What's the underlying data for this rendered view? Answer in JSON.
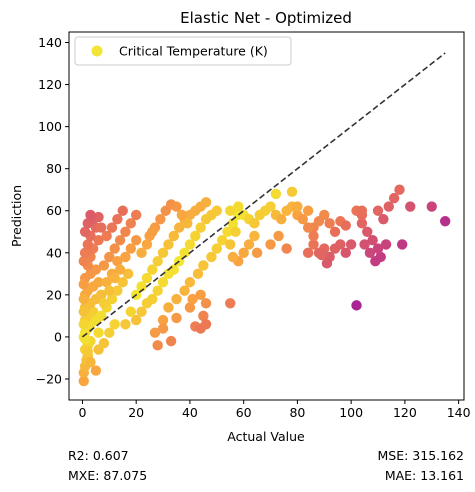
{
  "chart_data": {
    "type": "scatter",
    "title": "Elastic Net - Optimized",
    "xlabel": "Actual Value",
    "ylabel": "Prediction",
    "xlim": [
      -5,
      142
    ],
    "ylim": [
      -30,
      145
    ],
    "xticks": [
      0,
      20,
      40,
      60,
      80,
      100,
      120,
      140
    ],
    "yticks": [
      -20,
      0,
      20,
      40,
      60,
      80,
      100,
      120,
      140
    ],
    "xtick_labels": [
      "0",
      "20",
      "40",
      "60",
      "80",
      "100",
      "120",
      "140"
    ],
    "ytick_labels": [
      "−20",
      "0",
      "20",
      "40",
      "60",
      "80",
      "100",
      "120",
      "140"
    ],
    "grid": false,
    "legend": {
      "placement": "top-left",
      "entries": [
        "Critical Temperature (K)"
      ],
      "marker_color": "#f3e535"
    },
    "colormap": "plasma-upper",
    "reference_line": {
      "x": [
        0,
        135
      ],
      "y": [
        0,
        135
      ],
      "style": "dashed",
      "color": "#333333"
    },
    "series": [
      {
        "name": "Critical Temperature (K)",
        "points": [
          [
            0.5,
            -21
          ],
          [
            0.5,
            -17
          ],
          [
            1,
            -14
          ],
          [
            1.5,
            -11
          ],
          [
            2,
            -9
          ],
          [
            1,
            -6
          ],
          [
            2,
            -4
          ],
          [
            3,
            -2
          ],
          [
            0.5,
            0
          ],
          [
            1,
            2
          ],
          [
            2,
            4
          ],
          [
            3,
            6
          ],
          [
            1,
            8
          ],
          [
            2,
            10
          ],
          [
            4,
            12
          ],
          [
            1,
            14
          ],
          [
            3,
            16
          ],
          [
            5,
            18
          ],
          [
            1,
            20
          ],
          [
            2,
            22
          ],
          [
            4,
            24
          ],
          [
            6,
            26
          ],
          [
            1,
            28
          ],
          [
            3,
            30
          ],
          [
            5,
            32
          ],
          [
            2,
            34
          ],
          [
            0.5,
            36
          ],
          [
            3,
            38
          ],
          [
            1,
            40
          ],
          [
            4,
            42
          ],
          [
            2,
            44
          ],
          [
            6,
            46
          ],
          [
            3,
            48
          ],
          [
            1,
            50
          ],
          [
            5,
            52
          ],
          [
            2,
            54
          ],
          [
            4,
            56
          ],
          [
            6,
            57
          ],
          [
            3,
            58
          ],
          [
            7,
            52
          ],
          [
            0.5,
            25
          ],
          [
            1,
            -1
          ],
          [
            2,
            -7
          ],
          [
            3,
            -12
          ],
          [
            5,
            -16
          ],
          [
            0.5,
            6
          ],
          [
            0.5,
            12
          ],
          [
            0.5,
            18
          ],
          [
            6,
            -6
          ],
          [
            8,
            -3
          ],
          [
            10,
            2
          ],
          [
            12,
            6
          ],
          [
            7,
            10
          ],
          [
            9,
            14
          ],
          [
            11,
            18
          ],
          [
            13,
            22
          ],
          [
            15,
            26
          ],
          [
            17,
            30
          ],
          [
            8,
            34
          ],
          [
            10,
            38
          ],
          [
            12,
            42
          ],
          [
            14,
            46
          ],
          [
            16,
            50
          ],
          [
            18,
            54
          ],
          [
            20,
            58
          ],
          [
            9,
            48
          ],
          [
            11,
            52
          ],
          [
            13,
            56
          ],
          [
            15,
            60
          ],
          [
            7,
            20
          ],
          [
            9,
            26
          ],
          [
            11,
            30
          ],
          [
            13,
            36
          ],
          [
            6,
            2
          ],
          [
            5,
            8
          ],
          [
            8,
            16
          ],
          [
            10,
            22
          ],
          [
            12,
            28
          ],
          [
            14,
            32
          ],
          [
            16,
            38
          ],
          [
            18,
            42
          ],
          [
            20,
            46
          ],
          [
            20,
            20
          ],
          [
            22,
            24
          ],
          [
            24,
            28
          ],
          [
            26,
            32
          ],
          [
            28,
            36
          ],
          [
            30,
            40
          ],
          [
            32,
            44
          ],
          [
            34,
            48
          ],
          [
            36,
            52
          ],
          [
            38,
            56
          ],
          [
            40,
            58
          ],
          [
            42,
            60
          ],
          [
            44,
            62
          ],
          [
            46,
            64
          ],
          [
            20,
            8
          ],
          [
            22,
            12
          ],
          [
            24,
            16
          ],
          [
            26,
            18
          ],
          [
            28,
            22
          ],
          [
            30,
            26
          ],
          [
            32,
            30
          ],
          [
            34,
            32
          ],
          [
            36,
            36
          ],
          [
            38,
            40
          ],
          [
            40,
            44
          ],
          [
            42,
            48
          ],
          [
            44,
            52
          ],
          [
            46,
            56
          ],
          [
            48,
            58
          ],
          [
            50,
            60
          ],
          [
            25,
            48
          ],
          [
            27,
            52
          ],
          [
            29,
            56
          ],
          [
            31,
            60
          ],
          [
            33,
            63
          ],
          [
            35,
            62
          ],
          [
            37,
            58
          ],
          [
            39,
            54
          ],
          [
            22,
            40
          ],
          [
            24,
            44
          ],
          [
            26,
            50
          ],
          [
            18,
            12
          ],
          [
            16,
            6
          ],
          [
            30,
            8
          ],
          [
            32,
            14
          ],
          [
            35,
            18
          ],
          [
            38,
            22
          ],
          [
            40,
            26
          ],
          [
            43,
            30
          ],
          [
            45,
            34
          ],
          [
            48,
            38
          ],
          [
            50,
            42
          ],
          [
            52,
            46
          ],
          [
            54,
            50
          ],
          [
            56,
            54
          ],
          [
            58,
            58
          ],
          [
            28,
            -4
          ],
          [
            33,
            -2
          ],
          [
            27,
            2
          ],
          [
            30,
            4
          ],
          [
            35,
            9
          ],
          [
            40,
            14
          ],
          [
            45,
            10
          ],
          [
            42,
            5
          ],
          [
            44,
            4
          ],
          [
            46,
            6
          ],
          [
            41,
            18
          ],
          [
            44,
            20
          ],
          [
            46,
            16
          ],
          [
            55,
            16
          ],
          [
            55,
            60
          ],
          [
            58,
            62
          ],
          [
            60,
            58
          ],
          [
            62,
            56
          ],
          [
            64,
            54
          ],
          [
            66,
            58
          ],
          [
            68,
            60
          ],
          [
            70,
            62
          ],
          [
            72,
            58
          ],
          [
            74,
            56
          ],
          [
            76,
            60
          ],
          [
            78,
            62
          ],
          [
            80,
            58
          ],
          [
            82,
            56
          ],
          [
            84,
            60
          ],
          [
            86,
            52
          ],
          [
            88,
            55
          ],
          [
            90,
            58
          ],
          [
            92,
            54
          ],
          [
            94,
            50
          ],
          [
            96,
            55
          ],
          [
            98,
            53
          ],
          [
            60,
            40
          ],
          [
            62,
            44
          ],
          [
            64,
            48
          ],
          [
            58,
            36
          ],
          [
            56,
            38
          ],
          [
            55,
            44
          ],
          [
            57,
            50
          ],
          [
            65,
            40
          ],
          [
            70,
            44
          ],
          [
            73,
            48
          ],
          [
            76,
            42
          ],
          [
            72,
            68
          ],
          [
            78,
            69
          ],
          [
            80,
            62
          ],
          [
            84,
            52
          ],
          [
            86,
            44
          ],
          [
            88,
            40
          ],
          [
            90,
            42
          ],
          [
            92,
            38
          ],
          [
            84,
            40
          ],
          [
            86,
            48
          ],
          [
            94,
            42
          ],
          [
            96,
            44
          ],
          [
            98,
            40
          ],
          [
            100,
            44
          ],
          [
            91,
            35
          ],
          [
            89,
            39
          ],
          [
            102,
            60
          ],
          [
            104,
            54
          ],
          [
            104,
            58
          ],
          [
            106,
            50
          ],
          [
            108,
            46
          ],
          [
            110,
            60
          ],
          [
            112,
            56
          ],
          [
            114,
            62
          ],
          [
            116,
            66
          ],
          [
            118,
            70
          ],
          [
            122,
            62
          ],
          [
            105,
            44
          ],
          [
            107,
            40
          ],
          [
            109,
            36
          ],
          [
            111,
            38
          ],
          [
            113,
            44
          ],
          [
            119,
            44
          ],
          [
            102,
            15
          ],
          [
            130,
            62
          ],
          [
            135,
            55
          ],
          [
            104,
            60
          ],
          [
            110,
            42
          ]
        ]
      }
    ],
    "metrics": {
      "r2": "R2: 0.607",
      "mxe": "MXE: 87.075",
      "mse": "MSE: 315.162",
      "mae": "MAE: 13.161"
    }
  }
}
